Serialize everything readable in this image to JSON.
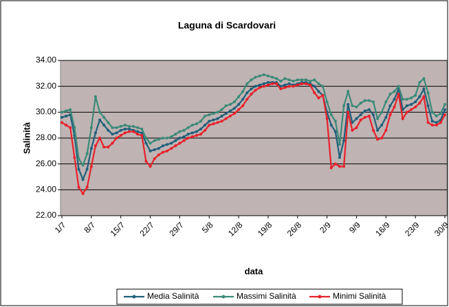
{
  "chart_data": {
    "type": "line",
    "title": "Laguna di Scardovari",
    "x_label": "data",
    "y_label": "Salinità",
    "categories": [
      "1/7",
      null,
      null,
      null,
      null,
      null,
      null,
      "8/7",
      null,
      null,
      null,
      null,
      null,
      null,
      "15/7",
      null,
      null,
      null,
      null,
      null,
      null,
      "22/7",
      null,
      null,
      null,
      null,
      null,
      null,
      "29/7",
      null,
      null,
      null,
      null,
      null,
      null,
      "5/8",
      null,
      null,
      null,
      null,
      null,
      null,
      "12/8",
      null,
      null,
      null,
      null,
      null,
      null,
      "19/8",
      null,
      null,
      null,
      null,
      null,
      null,
      "26/8",
      null,
      null,
      null,
      null,
      null,
      null,
      "2/9",
      null,
      null,
      null,
      null,
      null,
      null,
      "9/9",
      null,
      null,
      null,
      null,
      null,
      null,
      "16/9",
      null,
      null,
      null,
      null,
      null,
      null,
      "23/9",
      null,
      null,
      null,
      null,
      null,
      null,
      "30/9"
    ],
    "series": [
      {
        "name": "Media Salinità",
        "color": "#1f5f7a",
        "values": [
          29.6,
          29.7,
          29.8,
          28.2,
          25.6,
          24.8,
          25.6,
          27.2,
          28.4,
          29.4,
          29.0,
          28.6,
          28.3,
          28.4,
          28.6,
          28.7,
          28.7,
          28.6,
          28.5,
          28.4,
          27.6,
          27.0,
          27.1,
          27.2,
          27.4,
          27.5,
          27.6,
          27.8,
          28.0,
          28.1,
          28.3,
          28.4,
          28.5,
          28.7,
          29.0,
          29.3,
          29.4,
          29.5,
          29.7,
          29.9,
          30.1,
          30.3,
          30.6,
          31.0,
          31.5,
          31.8,
          32.0,
          32.1,
          32.2,
          32.3,
          32.3,
          32.3,
          32.0,
          32.1,
          32.2,
          32.1,
          32.2,
          32.3,
          32.3,
          32.2,
          32.0,
          31.6,
          31.3,
          30.0,
          29.0,
          28.5,
          26.5,
          27.8,
          30.6,
          29.2,
          29.5,
          29.8,
          30.1,
          30.2,
          29.8,
          28.6,
          29.0,
          29.6,
          30.5,
          31.0,
          31.8,
          30.2,
          30.5,
          30.6,
          30.8,
          31.2,
          31.8,
          30.5,
          29.3,
          29.2,
          29.4,
          30.2
        ]
      },
      {
        "name": "Massimi Salinità",
        "color": "#3a8a78",
        "values": [
          30.0,
          30.1,
          30.2,
          28.8,
          26.4,
          25.9,
          26.8,
          28.8,
          31.2,
          30.0,
          29.6,
          29.2,
          28.8,
          28.8,
          28.9,
          29.0,
          28.9,
          28.9,
          28.8,
          28.7,
          28.0,
          27.6,
          27.8,
          27.9,
          28.0,
          28.0,
          28.1,
          28.3,
          28.5,
          28.6,
          28.8,
          29.0,
          29.1,
          29.3,
          29.7,
          29.8,
          29.9,
          30.0,
          30.2,
          30.5,
          30.6,
          30.8,
          31.2,
          31.6,
          32.2,
          32.5,
          32.7,
          32.8,
          32.9,
          32.8,
          32.7,
          32.6,
          32.4,
          32.6,
          32.5,
          32.4,
          32.5,
          32.5,
          32.5,
          32.4,
          32.5,
          32.2,
          32.0,
          30.8,
          29.8,
          29.3,
          27.5,
          30.5,
          31.6,
          30.5,
          30.4,
          30.7,
          30.9,
          30.9,
          30.8,
          29.5,
          30.0,
          30.8,
          31.4,
          31.6,
          32.0,
          31.0,
          31.0,
          31.1,
          31.3,
          32.3,
          32.6,
          31.5,
          30.0,
          29.7,
          29.9,
          30.6
        ]
      },
      {
        "name": "Minimi Salinità",
        "color": "#e8202a",
        "values": [
          29.2,
          29.0,
          28.8,
          26.5,
          24.2,
          23.7,
          24.2,
          25.8,
          27.4,
          28.0,
          27.3,
          27.3,
          27.6,
          28.0,
          28.2,
          28.4,
          28.5,
          28.5,
          28.3,
          28.2,
          26.2,
          25.8,
          26.4,
          26.7,
          26.9,
          27.0,
          27.2,
          27.4,
          27.6,
          27.8,
          28.0,
          28.1,
          28.2,
          28.3,
          28.6,
          29.0,
          29.1,
          29.2,
          29.3,
          29.5,
          29.7,
          29.9,
          30.2,
          30.5,
          31.0,
          31.4,
          31.7,
          31.9,
          32.0,
          32.1,
          32.2,
          32.2,
          31.8,
          31.9,
          32.0,
          32.0,
          32.1,
          32.2,
          32.2,
          32.1,
          31.5,
          31.1,
          31.3,
          29.5,
          25.7,
          26.0,
          25.8,
          25.8,
          30.0,
          28.6,
          28.8,
          29.4,
          29.6,
          29.7,
          28.6,
          27.9,
          28.0,
          28.6,
          29.8,
          30.4,
          31.4,
          29.5,
          30.0,
          30.2,
          30.4,
          30.7,
          31.2,
          29.2,
          29.0,
          29.0,
          29.2,
          29.8
        ]
      }
    ],
    "ylim": [
      22,
      34
    ],
    "yticks": [
      {
        "value": 22,
        "label": "22.00"
      },
      {
        "value": 24,
        "label": "24.00"
      },
      {
        "value": 26,
        "label": "26.00"
      },
      {
        "value": 28,
        "label": "28.00"
      },
      {
        "value": 30,
        "label": "30.00"
      },
      {
        "value": 32,
        "label": "32.00"
      },
      {
        "value": 34,
        "label": "34.00"
      }
    ],
    "grid": true,
    "legend": "bottom",
    "plot_background": "#bfb3b3"
  }
}
